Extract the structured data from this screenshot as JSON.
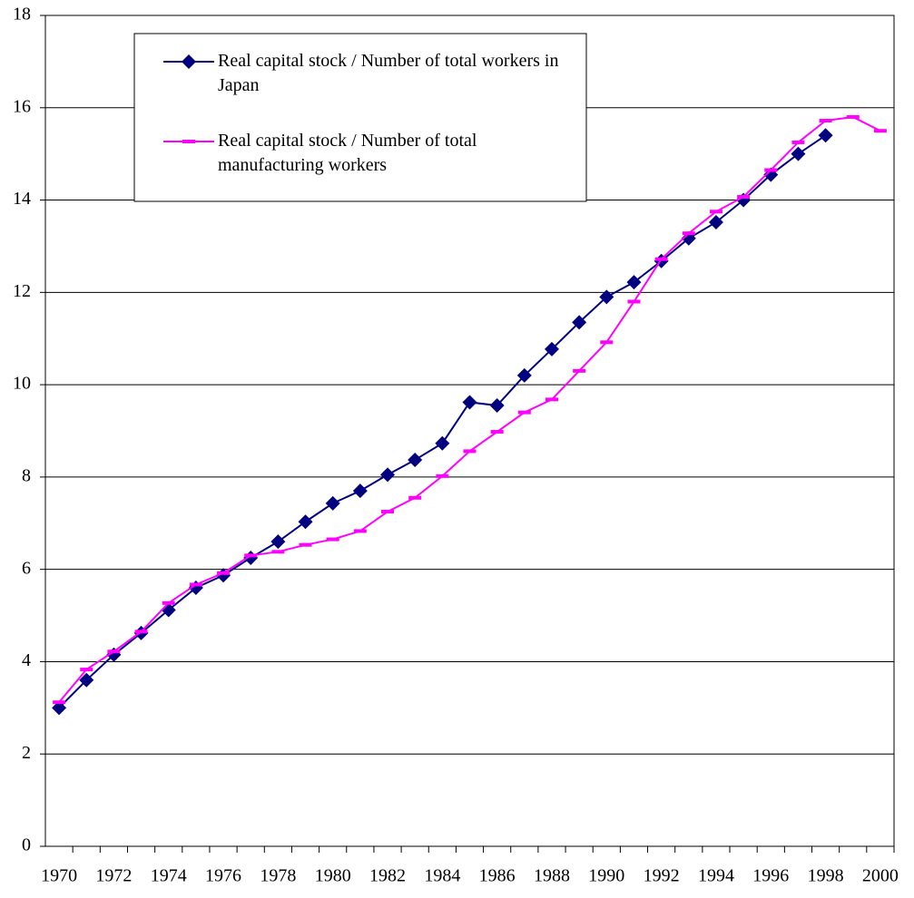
{
  "chart_data": {
    "type": "line",
    "categories": [
      "1970",
      null,
      "1972",
      null,
      "1974",
      null,
      "1976",
      null,
      "1978",
      null,
      "1980",
      null,
      "1982",
      null,
      "1984",
      null,
      "1986",
      null,
      "1988",
      null,
      "1990",
      null,
      "1992",
      null,
      "1994",
      null,
      "1996",
      null,
      "1998",
      null,
      "2000"
    ],
    "series": [
      {
        "name": "Real capital stock / Number of total workers in Japan",
        "color": "#000080",
        "marker": "diamond",
        "values": [
          3.0,
          3.6,
          4.15,
          4.62,
          5.12,
          5.6,
          5.87,
          6.25,
          6.6,
          7.03,
          7.43,
          7.7,
          8.05,
          8.37,
          8.73,
          9.62,
          9.55,
          10.2,
          10.77,
          11.35,
          11.9,
          12.22,
          12.68,
          13.17,
          13.52,
          14.0,
          14.55,
          15.0,
          15.4,
          null,
          null
        ]
      },
      {
        "name": "Real capital stock / Number of total manufacturing workers",
        "color": "#ff00ff",
        "marker": "dash",
        "values": [
          3.12,
          3.83,
          4.22,
          4.65,
          5.27,
          5.67,
          5.92,
          6.3,
          6.38,
          6.53,
          6.65,
          6.83,
          7.25,
          7.55,
          8.02,
          8.56,
          8.98,
          9.4,
          9.68,
          10.3,
          10.92,
          11.8,
          12.72,
          13.28,
          13.75,
          14.07,
          14.65,
          15.25,
          15.72,
          15.8,
          15.5
        ]
      }
    ],
    "ylim": [
      0,
      18
    ],
    "yticks": [
      0,
      2,
      4,
      6,
      8,
      10,
      12,
      14,
      16,
      18
    ],
    "grid": true
  }
}
